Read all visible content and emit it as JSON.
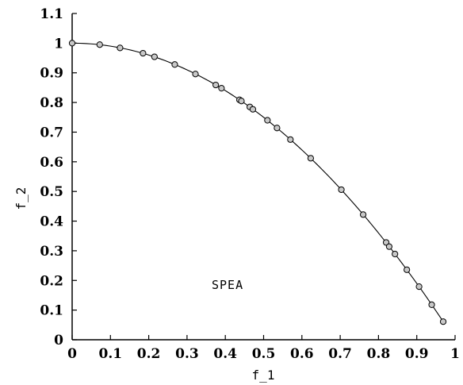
{
  "chart_data": {
    "type": "scatter",
    "title": "",
    "xlabel": "f_1",
    "ylabel": "f_2",
    "xlim": [
      0,
      1
    ],
    "ylim": [
      0,
      1.1
    ],
    "x_ticks": [
      0,
      0.1,
      0.2,
      0.3,
      0.4,
      0.5,
      0.6,
      0.7,
      0.8,
      0.9,
      1
    ],
    "x_tick_labels": [
      "0",
      "0.1",
      "0.2",
      "0.3",
      "0.4",
      "0.5",
      "0.6",
      "0.7",
      "0.8",
      "0.9",
      "1"
    ],
    "y_ticks": [
      0,
      0.1,
      0.2,
      0.3,
      0.4,
      0.5,
      0.6,
      0.7,
      0.8,
      0.9,
      1,
      1.1
    ],
    "y_tick_labels": [
      "0",
      "0.1",
      "0.2",
      "0.3",
      "0.4",
      "0.5",
      "0.6",
      "0.7",
      "0.8",
      "0.9",
      "1",
      "1.1"
    ],
    "grid": false,
    "annotation": "SPEA",
    "curve": "f_2 = 1 - f_1^2",
    "series": [
      {
        "points": [
          [
            0.0,
            1.0
          ],
          [
            0.072,
            0.995
          ],
          [
            0.125,
            0.984
          ],
          [
            0.185,
            0.966
          ],
          [
            0.215,
            0.954
          ],
          [
            0.268,
            0.928
          ],
          [
            0.322,
            0.896
          ],
          [
            0.375,
            0.859
          ],
          [
            0.39,
            0.848
          ],
          [
            0.437,
            0.809
          ],
          [
            0.442,
            0.805
          ],
          [
            0.464,
            0.785
          ],
          [
            0.472,
            0.777
          ],
          [
            0.51,
            0.74
          ],
          [
            0.535,
            0.714
          ],
          [
            0.57,
            0.675
          ],
          [
            0.623,
            0.612
          ],
          [
            0.703,
            0.506
          ],
          [
            0.76,
            0.422
          ],
          [
            0.82,
            0.328
          ],
          [
            0.828,
            0.314
          ],
          [
            0.843,
            0.289
          ],
          [
            0.874,
            0.236
          ],
          [
            0.906,
            0.179
          ],
          [
            0.939,
            0.118
          ],
          [
            0.969,
            0.061
          ]
        ]
      }
    ]
  }
}
